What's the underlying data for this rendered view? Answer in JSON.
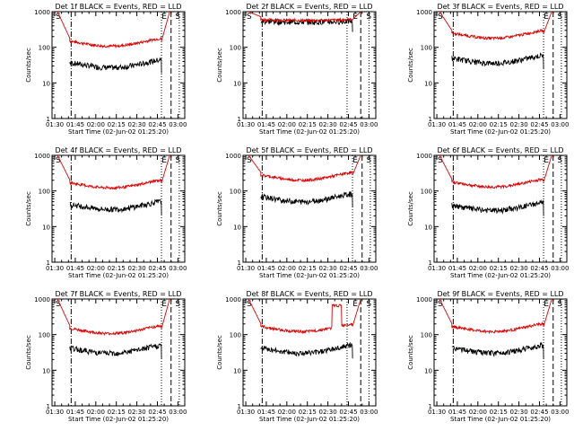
{
  "colors": {
    "events": "#000000",
    "lld": "#dd0000",
    "axis": "#000000",
    "background": "#ffffff"
  },
  "x_tick_labels": [
    "01:30",
    "01:45",
    "02:00",
    "02:15",
    "02:30",
    "02:45",
    "03:00"
  ],
  "y_tick_labels": [
    "1",
    "10",
    "100",
    "1000"
  ],
  "ylabel": "Counts/sec",
  "xlabel": "Start Time (02-Jun-02 01:25:20)",
  "chart_data": [
    {
      "type": "line",
      "detector": "1f",
      "title": "Det 1f BLACK = Events, RED = LLD",
      "xlabel": "Start Time (02-Jun-02 01:25:20)",
      "ylabel": "Counts/sec",
      "x_unit": "minutes after 01:30",
      "xlim": [
        -2,
        95
      ],
      "ylim": [
        1,
        1000
      ],
      "yscale": "log",
      "x_tick_labels": [
        "01:30",
        "01:45",
        "02:00",
        "02:15",
        "02:30",
        "02:45",
        "03:00"
      ],
      "y_tick_labels": [
        "1",
        "10",
        "100",
        "1000"
      ],
      "start": 11,
      "end": 78,
      "red_level": 150,
      "black_ratio": 0.25,
      "lead_in_from": 2,
      "s_left_line_x": 12,
      "e_left_line_x": 78,
      "e_right_line_x": 85,
      "s_right_line_x": 91,
      "s_label_x": 0,
      "e_label_x": 84,
      "s_right_label_x": 88,
      "top_markers": [
        "S",
        "E",
        "S"
      ],
      "series": [
        {
          "name": "Events",
          "color": "#000000"
        },
        {
          "name": "LLD",
          "color": "#dd0000"
        }
      ]
    },
    {
      "type": "line",
      "detector": "2f",
      "title": "Det 2f BLACK = Events, RED = LLD",
      "xlabel": "Start Time (02-Jun-02 01:25:20)",
      "ylabel": "Counts/sec",
      "x_unit": "minutes after 01:30",
      "xlim": [
        -2,
        95
      ],
      "ylim": [
        1,
        1000
      ],
      "yscale": "log",
      "x_tick_labels": [
        "01:30",
        "01:45",
        "02:00",
        "02:15",
        "02:30",
        "02:45",
        "03:00"
      ],
      "y_tick_labels": [
        "1",
        "10",
        "100",
        "1000"
      ],
      "start": 11,
      "end": 78,
      "red_level": 600,
      "black_ratio": 0.9,
      "flat": true,
      "lead_in_from": 2,
      "s_left_line_x": 12,
      "e_left_line_x": 74,
      "e_right_line_x": 84,
      "s_right_line_x": 90,
      "s_label_x": 0,
      "e_label_x": 84,
      "s_right_label_x": 88,
      "top_markers": [
        "S",
        "E",
        "S"
      ],
      "series": [
        {
          "name": "Events",
          "color": "#000000"
        },
        {
          "name": "LLD",
          "color": "#dd0000"
        }
      ]
    },
    {
      "type": "line",
      "detector": "3f",
      "title": "Det 3f BLACK = Events, RED = LLD",
      "xlabel": "Start Time (02-Jun-02 01:25:20)",
      "ylabel": "Counts/sec",
      "x_unit": "minutes after 01:30",
      "xlim": [
        -2,
        95
      ],
      "ylim": [
        1,
        1000
      ],
      "yscale": "log",
      "x_tick_labels": [
        "01:30",
        "01:45",
        "02:00",
        "02:15",
        "02:30",
        "02:45",
        "03:00"
      ],
      "y_tick_labels": [
        "1",
        "10",
        "100",
        "1000"
      ],
      "start": 11,
      "end": 78,
      "red_level": 250,
      "black_ratio": 0.2,
      "lead_in_from": 2,
      "s_left_line_x": 12,
      "e_left_line_x": 78,
      "e_right_line_x": 85,
      "s_right_line_x": 91,
      "s_label_x": 0,
      "e_label_x": 84,
      "s_right_label_x": 88,
      "top_markers": [
        "S",
        "E",
        "S"
      ],
      "series": [
        {
          "name": "Events",
          "color": "#000000"
        },
        {
          "name": "LLD",
          "color": "#dd0000"
        }
      ]
    },
    {
      "type": "line",
      "detector": "4f",
      "title": "Det 4f BLACK = Events, RED = LLD",
      "xlabel": "Start Time (02-Jun-02 01:25:20)",
      "ylabel": "Counts/sec",
      "x_unit": "minutes after 01:30",
      "xlim": [
        -2,
        95
      ],
      "ylim": [
        1,
        1000
      ],
      "yscale": "log",
      "x_tick_labels": [
        "01:30",
        "01:45",
        "02:00",
        "02:15",
        "02:30",
        "02:45",
        "03:00"
      ],
      "y_tick_labels": [
        "1",
        "10",
        "100",
        "1000"
      ],
      "start": 11,
      "end": 78,
      "red_level": 170,
      "black_ratio": 0.25,
      "lead_in_from": 2,
      "s_left_line_x": 12,
      "e_left_line_x": 78,
      "e_right_line_x": 85,
      "s_right_line_x": 91,
      "s_label_x": 0,
      "e_label_x": 84,
      "s_right_label_x": 88,
      "top_markers": [
        "S",
        "E",
        "S"
      ],
      "series": [
        {
          "name": "Events",
          "color": "#000000"
        },
        {
          "name": "LLD",
          "color": "#dd0000"
        }
      ]
    },
    {
      "type": "line",
      "detector": "5f",
      "title": "Det 5f BLACK = Events, RED = LLD",
      "xlabel": "Start Time (02-Jun-02 01:25:20)",
      "ylabel": "Counts/sec",
      "x_unit": "minutes after 01:30",
      "xlim": [
        -2,
        95
      ],
      "ylim": [
        1,
        1000
      ],
      "yscale": "log",
      "x_tick_labels": [
        "01:30",
        "01:45",
        "02:00",
        "02:15",
        "02:30",
        "02:45",
        "03:00"
      ],
      "y_tick_labels": [
        "1",
        "10",
        "100",
        "1000"
      ],
      "start": 11,
      "end": 78,
      "red_level": 280,
      "black_ratio": 0.25,
      "lead_in_from": 2,
      "s_left_line_x": 12,
      "e_left_line_x": 78,
      "e_right_line_x": 85,
      "s_right_line_x": 91,
      "s_label_x": 0,
      "e_label_x": 84,
      "s_right_label_x": 88,
      "top_markers": [
        "S",
        "E",
        "S"
      ],
      "series": [
        {
          "name": "Events",
          "color": "#000000"
        },
        {
          "name": "LLD",
          "color": "#dd0000"
        }
      ]
    },
    {
      "type": "line",
      "detector": "6f",
      "title": "Det 6f BLACK = Events, RED = LLD",
      "xlabel": "Start Time (02-Jun-02 01:25:20)",
      "ylabel": "Counts/sec",
      "x_unit": "minutes after 01:30",
      "xlim": [
        -2,
        95
      ],
      "ylim": [
        1,
        1000
      ],
      "yscale": "log",
      "x_tick_labels": [
        "01:30",
        "01:45",
        "02:00",
        "02:15",
        "02:30",
        "02:45",
        "03:00"
      ],
      "y_tick_labels": [
        "1",
        "10",
        "100",
        "1000"
      ],
      "start": 11,
      "end": 78,
      "red_level": 180,
      "black_ratio": 0.22,
      "lead_in_from": 2,
      "s_left_line_x": 12,
      "e_left_line_x": 78,
      "e_right_line_x": 85,
      "s_right_line_x": 91,
      "s_label_x": 0,
      "e_label_x": 84,
      "s_right_label_x": 88,
      "top_markers": [
        "S",
        "E",
        "S"
      ],
      "series": [
        {
          "name": "Events",
          "color": "#000000"
        },
        {
          "name": "LLD",
          "color": "#dd0000"
        }
      ]
    },
    {
      "type": "line",
      "detector": "7f",
      "title": "Det 7f BLACK = Events, RED = LLD",
      "xlabel": "Start Time (02-Jun-02 01:25:20)",
      "ylabel": "Counts/sec",
      "x_unit": "minutes after 01:30",
      "xlim": [
        -2,
        95
      ],
      "ylim": [
        1,
        1000
      ],
      "yscale": "log",
      "x_tick_labels": [
        "01:30",
        "01:45",
        "02:00",
        "02:15",
        "02:30",
        "02:45",
        "03:00"
      ],
      "y_tick_labels": [
        "1",
        "10",
        "100",
        "1000"
      ],
      "start": 11,
      "end": 78,
      "red_level": 150,
      "black_ratio": 0.28,
      "lead_in_from": 2,
      "s_left_line_x": 12,
      "e_left_line_x": 78,
      "e_right_line_x": 85,
      "s_right_line_x": 91,
      "s_label_x": 0,
      "e_label_x": 84,
      "s_right_label_x": 88,
      "top_markers": [
        "S",
        "E",
        "S"
      ],
      "series": [
        {
          "name": "Events",
          "color": "#000000"
        },
        {
          "name": "LLD",
          "color": "#dd0000"
        }
      ]
    },
    {
      "type": "line",
      "detector": "8f",
      "title": "Det 8f BLACK = Events, RED = LLD",
      "xlabel": "Start Time (02-Jun-02 01:25:20)",
      "ylabel": "Counts/sec",
      "x_unit": "minutes after 01:30",
      "xlim": [
        -2,
        95
      ],
      "ylim": [
        1,
        1000
      ],
      "yscale": "log",
      "x_tick_labels": [
        "01:30",
        "01:45",
        "02:00",
        "02:15",
        "02:30",
        "02:45",
        "03:00"
      ],
      "y_tick_labels": [
        "1",
        "10",
        "100",
        "1000"
      ],
      "start": 11,
      "end": 78,
      "red_level": 170,
      "black_ratio": 0.25,
      "bump": [
        63,
        70,
        650
      ],
      "lead_in_from": 2,
      "s_left_line_x": 12,
      "e_left_line_x": 74,
      "e_right_line_x": 84,
      "s_right_line_x": 90,
      "s_label_x": 0,
      "e_label_x": 84,
      "s_right_label_x": 88,
      "top_markers": [
        "S",
        "E",
        "S"
      ],
      "series": [
        {
          "name": "Events",
          "color": "#000000"
        },
        {
          "name": "LLD",
          "color": "#dd0000"
        }
      ]
    },
    {
      "type": "line",
      "detector": "9f",
      "title": "Det 9f BLACK = Events, RED = LLD",
      "xlabel": "Start Time (02-Jun-02 01:25:20)",
      "ylabel": "Counts/sec",
      "x_unit": "minutes after 01:30",
      "xlim": [
        -2,
        95
      ],
      "ylim": [
        1,
        1000
      ],
      "yscale": "log",
      "x_tick_labels": [
        "01:30",
        "01:45",
        "02:00",
        "02:15",
        "02:30",
        "02:45",
        "03:00"
      ],
      "y_tick_labels": [
        "1",
        "10",
        "100",
        "1000"
      ],
      "start": 11,
      "end": 78,
      "red_level": 170,
      "black_ratio": 0.25,
      "lead_in_from": 2,
      "s_left_line_x": 12,
      "e_left_line_x": 78,
      "e_right_line_x": 85,
      "s_right_line_x": 91,
      "s_label_x": 0,
      "e_label_x": 84,
      "s_right_label_x": 88,
      "top_markers": [
        "S",
        "E",
        "S"
      ],
      "series": [
        {
          "name": "Events",
          "color": "#000000"
        },
        {
          "name": "LLD",
          "color": "#dd0000"
        }
      ]
    }
  ]
}
